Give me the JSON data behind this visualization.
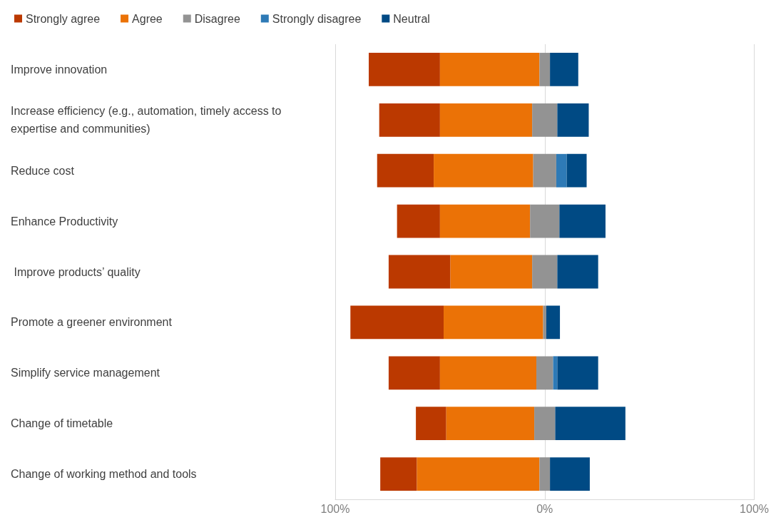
{
  "chart_data": {
    "type": "bar",
    "orientation": "horizontal",
    "categories": [
      "Improve innovation",
      "Increase efficiency (e.g., automation, timely access to expertise and communities)",
      "Reduce cost",
      "Enhance Productivity",
      " Improve products’ quality",
      "Promote a greener environment",
      "Simplify service management",
      "Change of timetable",
      "Change of working method and tools"
    ],
    "series": [
      {
        "name": "Strongly agree",
        "color": "#bb3900",
        "base": [
          -84,
          -79,
          -80,
          -70.5,
          -74.5,
          -92.75,
          -74.5,
          -61.5,
          -78.5
        ],
        "values": [
          34,
          29,
          27,
          20.5,
          29.5,
          44.5,
          24.5,
          14.5,
          17.5
        ]
      },
      {
        "name": "Agree",
        "color": "#eb7206",
        "base": [
          -50,
          -50,
          -53,
          -50,
          -45,
          -48.25,
          -50,
          -47,
          -61
        ],
        "values": [
          47.5,
          44,
          47.5,
          43,
          39,
          47.5,
          46,
          42,
          58.5
        ]
      },
      {
        "name": "Disagree",
        "color": "#939393",
        "base": [
          -2.5,
          -6,
          -5.5,
          -7,
          -6,
          -0.75,
          -4,
          -5,
          -2.5
        ],
        "values": [
          5,
          12,
          11,
          14,
          12,
          1.5,
          8,
          10,
          5
        ]
      },
      {
        "name": "Strongly disagree",
        "color": "#2e7ab6",
        "base": [
          null,
          null,
          5.5,
          null,
          null,
          null,
          4,
          null,
          null
        ],
        "values": [
          null,
          null,
          5,
          null,
          null,
          null,
          2,
          null,
          null
        ]
      },
      {
        "name": "Neutral",
        "color": "#004a84",
        "base": [
          2.5,
          6,
          10.5,
          7,
          6,
          0.75,
          6,
          5,
          2.5
        ],
        "values": [
          13.5,
          15,
          9.5,
          22,
          19.5,
          6.5,
          19.5,
          33.5,
          19
        ]
      }
    ],
    "xlim": [
      -100,
      100
    ],
    "xticks": [
      {
        "value": -100,
        "label": "100%"
      },
      {
        "value": 0,
        "label": "0%"
      },
      {
        "value": 100,
        "label": "100%"
      }
    ],
    "grid": "x",
    "legend": "top left"
  }
}
